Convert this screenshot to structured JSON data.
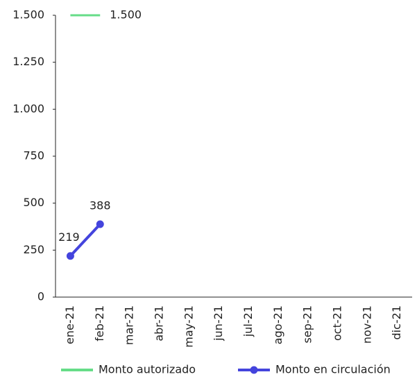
{
  "chart_data": {
    "type": "line",
    "categories": [
      "ene-21",
      "feb-21",
      "mar-21",
      "abr-21",
      "may-21",
      "jun-21",
      "jul-21",
      "ago-21",
      "sep-21",
      "oct-21",
      "nov-21",
      "dic-21"
    ],
    "series": [
      {
        "name": "Monto autorizado",
        "color": "#66dd88",
        "marker": false,
        "values": [
          1500,
          1500,
          null,
          null,
          null,
          null,
          null,
          null,
          null,
          null,
          null,
          null
        ],
        "value_labels": [
          null,
          "1.500",
          null,
          null,
          null,
          null,
          null,
          null,
          null,
          null,
          null,
          null
        ]
      },
      {
        "name": "Monto en circulación",
        "color": "#4444dd",
        "marker": true,
        "values": [
          219,
          388,
          null,
          null,
          null,
          null,
          null,
          null,
          null,
          null,
          null,
          null
        ]
      }
    ],
    "ylim": [
      0,
      1500
    ],
    "yticks": [
      0,
      250,
      500,
      750,
      {
        "value": 1000,
        "label": "1.000"
      },
      {
        "value": 1250,
        "label": "1.250"
      },
      {
        "value": 1500,
        "label": "1.500"
      }
    ],
    "grid": false,
    "legend": "bottom"
  }
}
